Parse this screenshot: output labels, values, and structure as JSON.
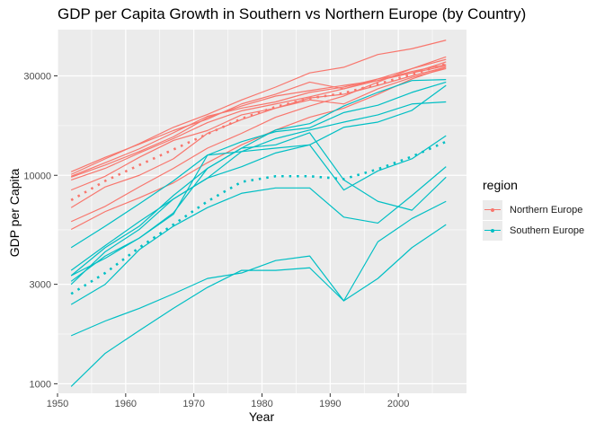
{
  "chart_data": {
    "type": "line",
    "title": "GDP per Capita Growth in Southern vs Northern Europe (by Country)",
    "xlabel": "Year",
    "ylabel": "GDP per Capita",
    "y_scale": "log10",
    "xlim": [
      1952,
      2007
    ],
    "ylim": [
      1000,
      48000
    ],
    "x_ticks": [
      1950,
      1960,
      1970,
      1980,
      1990,
      2000
    ],
    "x_tick_labels": [
      "1950",
      "1960",
      "1970",
      "1980",
      "1990",
      "2000"
    ],
    "y_ticks": [
      1000,
      3000,
      10000,
      30000
    ],
    "y_tick_labels": [
      "1000",
      "3000",
      "10000",
      "30000"
    ],
    "grid": true,
    "legend": {
      "title": "region",
      "placement": "right",
      "entries": [
        {
          "label": "Northern Europe",
          "color": "#F8766D"
        },
        {
          "label": "Southern Europe",
          "color": "#00BFC4"
        }
      ]
    },
    "x": [
      1952,
      1957,
      1962,
      1967,
      1972,
      1977,
      1982,
      1987,
      1992,
      1997,
      2002,
      2007
    ],
    "series": [
      {
        "region": "Northern Europe",
        "style": "solid",
        "values": [
          10100,
          12000,
          14200,
          17000,
          19600,
          23000,
          26500,
          31000,
          33000,
          38000,
          40500,
          44500
        ]
      },
      {
        "region": "Northern Europe",
        "style": "solid",
        "values": [
          9900,
          11500,
          13400,
          16000,
          19200,
          21000,
          22500,
          25000,
          26500,
          29000,
          32500,
          36000
        ]
      },
      {
        "region": "Northern Europe",
        "style": "solid",
        "values": [
          10400,
          12200,
          14100,
          16400,
          18600,
          22000,
          24500,
          28000,
          26000,
          28500,
          31000,
          35000
        ]
      },
      {
        "region": "Northern Europe",
        "style": "solid",
        "values": [
          9800,
          11200,
          13000,
          15300,
          18900,
          21500,
          24000,
          25500,
          27000,
          28500,
          31500,
          34000
        ]
      },
      {
        "region": "Northern Europe",
        "style": "solid",
        "values": [
          9500,
          10800,
          12800,
          15000,
          17900,
          20400,
          22000,
          23800,
          26000,
          29000,
          31000,
          33500
        ]
      },
      {
        "region": "Northern Europe",
        "style": "solid",
        "values": [
          8500,
          9900,
          12200,
          14700,
          16400,
          19500,
          21000,
          23500,
          24500,
          27000,
          30000,
          33000
        ]
      },
      {
        "region": "Northern Europe",
        "style": "solid",
        "values": [
          7000,
          8800,
          10000,
          12000,
          15900,
          18500,
          21000,
          23000,
          22000,
          26000,
          29500,
          32500
        ]
      },
      {
        "region": "Northern Europe",
        "style": "solid",
        "values": [
          6000,
          7100,
          8800,
          10800,
          13500,
          15900,
          19000,
          21500,
          24000,
          28000,
          32500,
          37000
        ]
      },
      {
        "region": "Northern Europe",
        "style": "solid",
        "values": [
          5500,
          6700,
          7800,
          9200,
          11500,
          14000,
          16500,
          19000,
          21000,
          24500,
          29000,
          33000
        ]
      },
      {
        "region": "Northern Europe",
        "style": "dotted",
        "values": [
          7600,
          9400,
          11200,
          13300,
          15800,
          18700,
          21300,
          23400,
          24800,
          27400,
          30500,
          34200
        ]
      },
      {
        "region": "Southern Europe",
        "style": "solid",
        "values": [
          4500,
          5700,
          7300,
          9400,
          12500,
          14500,
          16200,
          16900,
          20000,
          21700,
          25000,
          28000
        ]
      },
      {
        "region": "Southern Europe",
        "style": "solid",
        "values": [
          3300,
          4500,
          5700,
          8000,
          10800,
          13500,
          16500,
          17700,
          21500,
          25000,
          28500,
          28800
        ]
      },
      {
        "region": "Southern Europe",
        "style": "solid",
        "values": [
          3000,
          4300,
          5500,
          7700,
          9700,
          13000,
          15000,
          16500,
          18000,
          19500,
          22000,
          22500
        ]
      },
      {
        "region": "Southern Europe",
        "style": "solid",
        "values": [
          3500,
          4600,
          6000,
          7700,
          9700,
          11000,
          12800,
          14000,
          17000,
          18000,
          20500,
          27000
        ]
      },
      {
        "region": "Southern Europe",
        "style": "solid",
        "values": [
          2400,
          3000,
          4400,
          5700,
          7000,
          8200,
          8700,
          8700,
          6300,
          5900,
          8000,
          11000
        ]
      },
      {
        "region": "Southern Europe",
        "style": "solid",
        "values": [
          3300,
          4000,
          5000,
          6500,
          12500,
          13000,
          13500,
          14000,
          8500,
          10500,
          12000,
          15500
        ]
      },
      {
        "region": "Southern Europe",
        "style": "solid",
        "values": [
          3100,
          4100,
          5000,
          6600,
          10800,
          13500,
          14000,
          16000,
          9500,
          7500,
          6800,
          9800
        ]
      },
      {
        "region": "Southern Europe",
        "style": "solid",
        "values": [
          1700,
          2000,
          2300,
          2700,
          3200,
          3400,
          3900,
          4100,
          2500,
          4800,
          6200,
          7500
        ]
      },
      {
        "region": "Southern Europe",
        "style": "solid",
        "values": [
          970,
          1400,
          1800,
          2300,
          2900,
          3500,
          3500,
          3600,
          2500,
          3200,
          4500,
          5800
        ]
      },
      {
        "region": "Southern Europe",
        "style": "dotted",
        "values": [
          2700,
          3400,
          4500,
          5800,
          7500,
          9300,
          9900,
          9900,
          9600,
          10700,
          12300,
          14500
        ]
      }
    ]
  }
}
